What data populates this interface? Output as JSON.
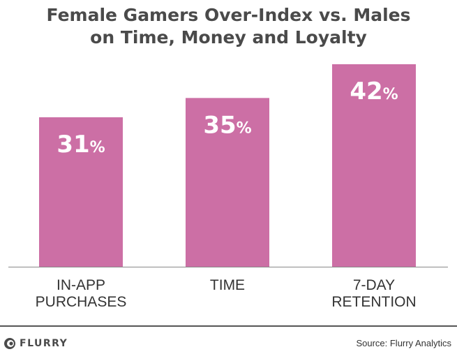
{
  "title": {
    "line1": "Female Gamers Over-Index vs. Males",
    "line2": "on Time, Money and Loyalty"
  },
  "chart_data": {
    "type": "bar",
    "categories": [
      [
        "IN-APP",
        "PURCHASES"
      ],
      [
        "TIME"
      ],
      [
        "7-DAY",
        "RETENTION"
      ]
    ],
    "values": [
      31,
      35,
      42
    ],
    "value_suffix": "%",
    "title": "Female Gamers Over-Index vs. Males on Time, Money and Loyalty",
    "xlabel": "",
    "ylabel": "",
    "ylim": [
      0,
      42
    ],
    "bar_color": "#cc6fa5",
    "grid": false
  },
  "footer": {
    "brand": "FLURRY",
    "logo_icon": "flurry-logo-icon",
    "source": "Source: Flurry Analytics"
  }
}
